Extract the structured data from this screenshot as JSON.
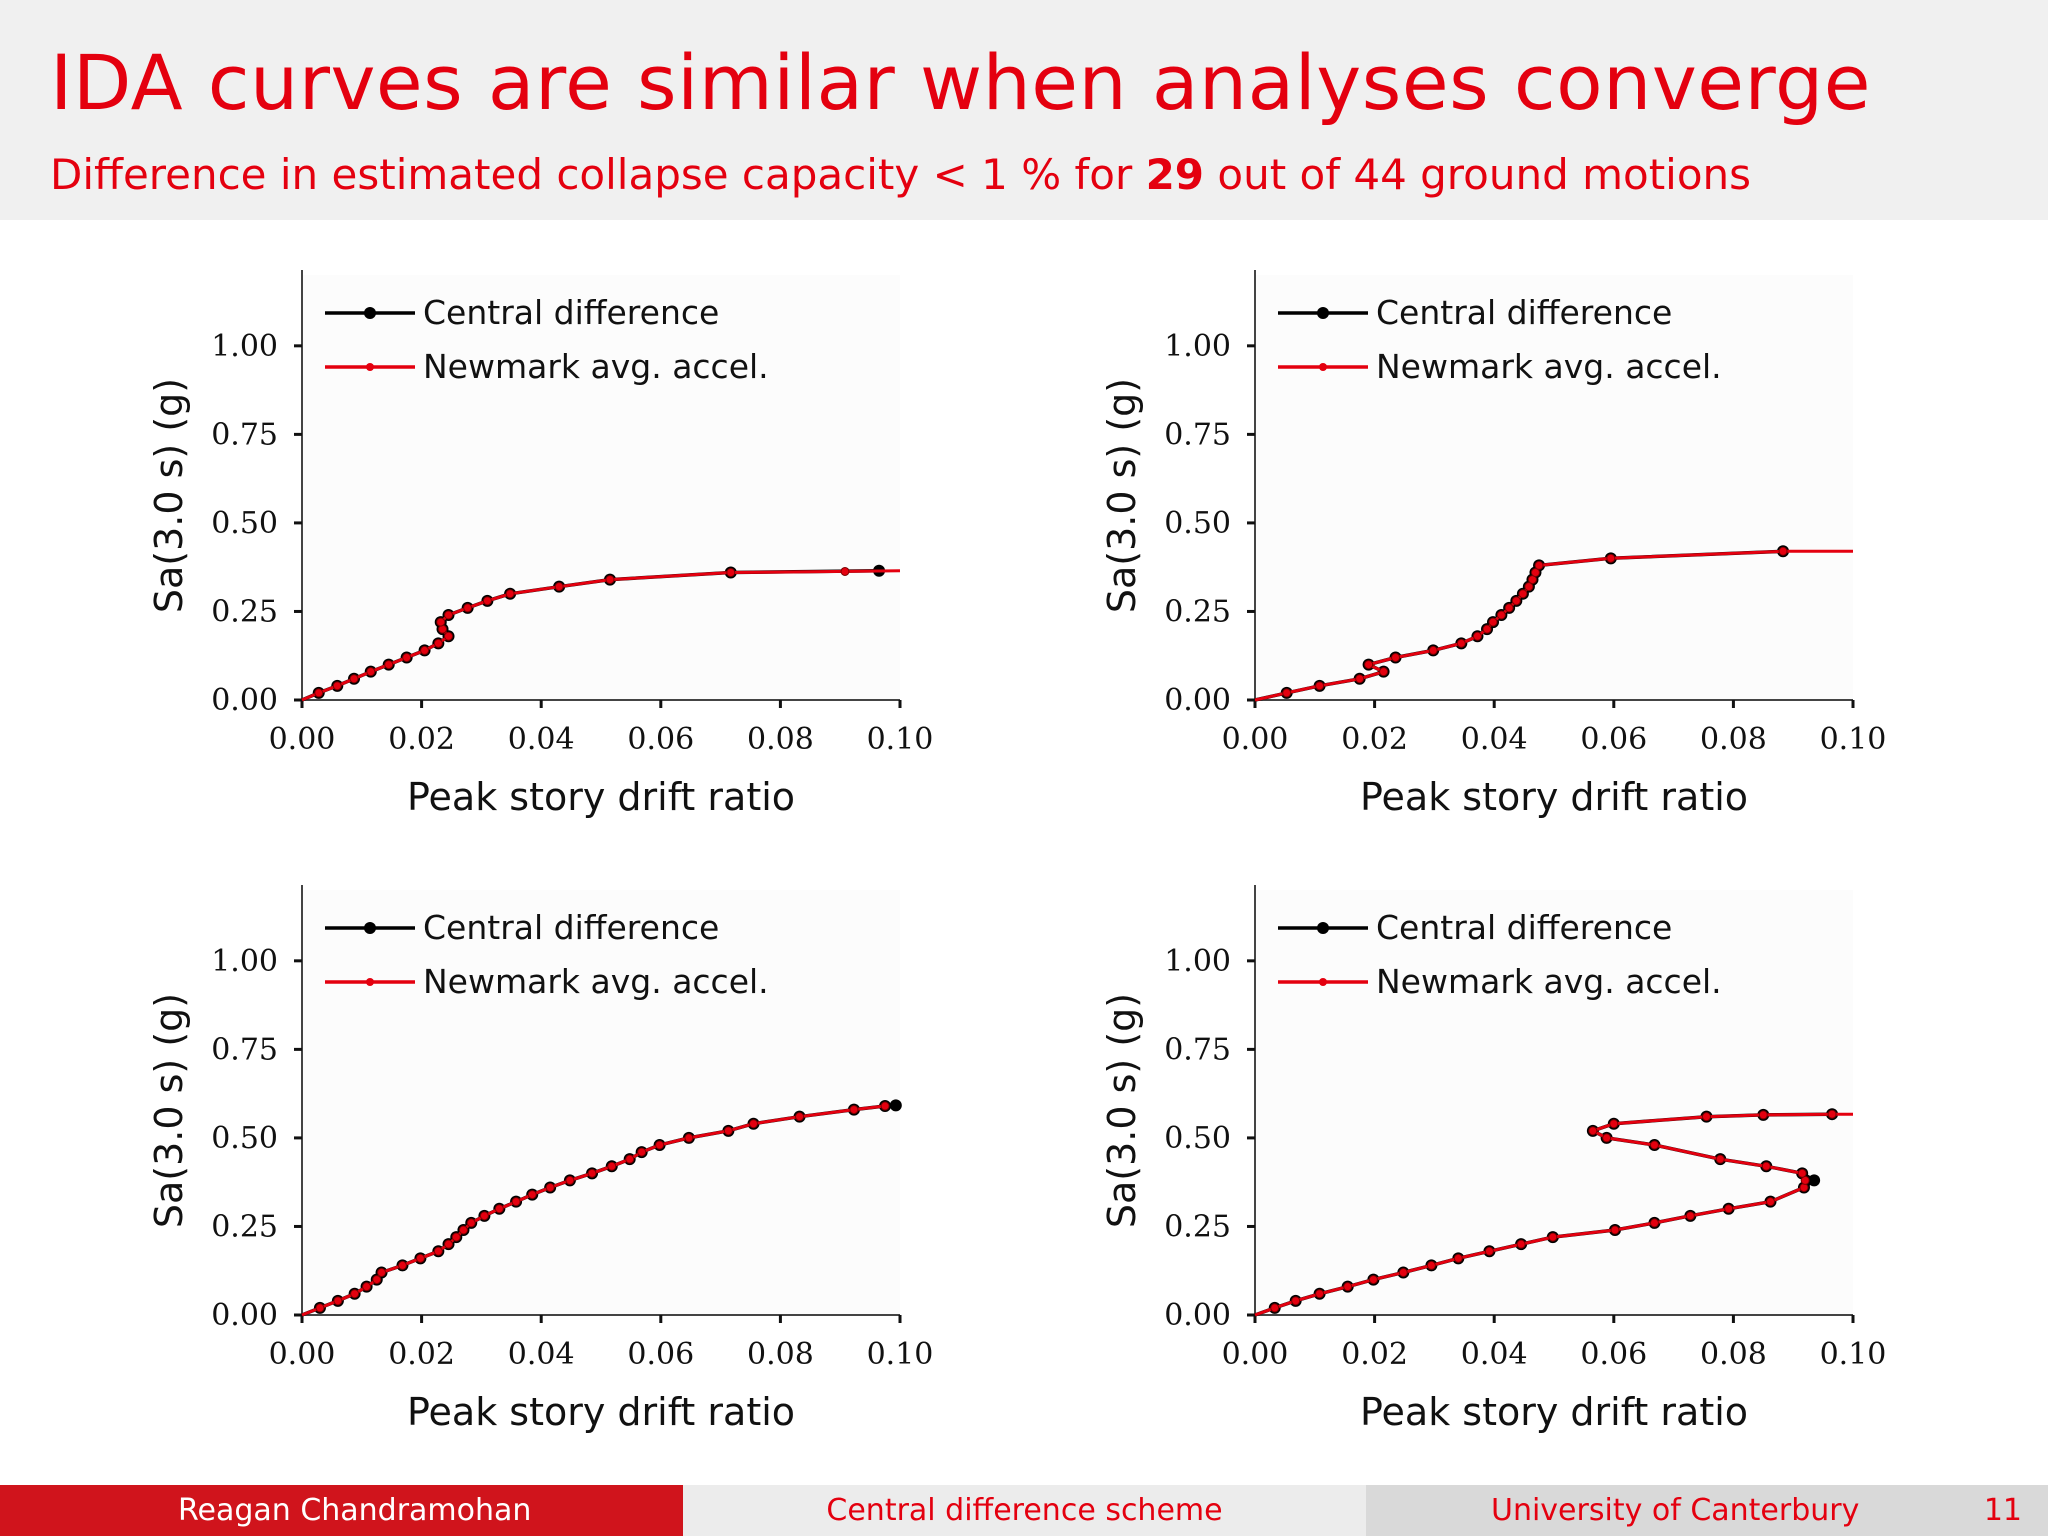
{
  "slide": {
    "title": "IDA curves are similar when analyses converge",
    "subtitle_pre": "Difference in estimated collapse capacity < 1 % for ",
    "subtitle_bold": "29",
    "subtitle_post": " out of 44 ground motions"
  },
  "footer": {
    "author": "Reagan Chandramohan",
    "topic": "Central difference scheme",
    "institution": "University of Canterbury",
    "page": "11"
  },
  "colors": {
    "accent": "#e4000f",
    "central": "#000000",
    "newmark": "#e4000f"
  },
  "chart_data": [
    {
      "type": "line",
      "xlabel": "Peak story drift ratio",
      "ylabel": "Sa(3.0 s) (g)",
      "xlim": [
        0,
        0.1
      ],
      "ylim": [
        0,
        1.2
      ],
      "xticks": [
        "0.00",
        "0.02",
        "0.04",
        "0.06",
        "0.08",
        "0.10"
      ],
      "yticks": [
        "0.00",
        "0.25",
        "0.50",
        "0.75",
        "1.00"
      ],
      "legend_position": "top-left",
      "series": [
        {
          "name": "Central difference",
          "color": "#000000",
          "points": [
            [
              0,
              0
            ],
            [
              0.0028,
              0.02
            ],
            [
              0.0059,
              0.04
            ],
            [
              0.0087,
              0.06
            ],
            [
              0.0115,
              0.08
            ],
            [
              0.0145,
              0.1
            ],
            [
              0.0175,
              0.12
            ],
            [
              0.0205,
              0.14
            ],
            [
              0.0228,
              0.16
            ],
            [
              0.0245,
              0.18
            ],
            [
              0.0235,
              0.2
            ],
            [
              0.0232,
              0.22
            ],
            [
              0.0245,
              0.24
            ],
            [
              0.0277,
              0.26
            ],
            [
              0.031,
              0.28
            ],
            [
              0.0348,
              0.3
            ],
            [
              0.043,
              0.32
            ],
            [
              0.0515,
              0.34
            ],
            [
              0.0717,
              0.36
            ],
            [
              0.0965,
              0.365
            ]
          ]
        },
        {
          "name": "Newmark avg. accel.",
          "color": "#e4000f",
          "points": [
            [
              0,
              0
            ],
            [
              0.0028,
              0.02
            ],
            [
              0.0059,
              0.04
            ],
            [
              0.0087,
              0.06
            ],
            [
              0.0115,
              0.08
            ],
            [
              0.0145,
              0.1
            ],
            [
              0.0175,
              0.12
            ],
            [
              0.0205,
              0.14
            ],
            [
              0.0228,
              0.16
            ],
            [
              0.0245,
              0.18
            ],
            [
              0.0235,
              0.2
            ],
            [
              0.0232,
              0.22
            ],
            [
              0.0245,
              0.24
            ],
            [
              0.0277,
              0.26
            ],
            [
              0.031,
              0.28
            ],
            [
              0.0348,
              0.3
            ],
            [
              0.043,
              0.32
            ],
            [
              0.0515,
              0.34
            ],
            [
              0.0717,
              0.36
            ],
            [
              0.0908,
              0.363
            ],
            [
              0.1,
              0.365
            ]
          ]
        }
      ]
    },
    {
      "type": "line",
      "xlabel": "Peak story drift ratio",
      "ylabel": "Sa(3.0 s) (g)",
      "xlim": [
        0,
        0.1
      ],
      "ylim": [
        0,
        1.2
      ],
      "xticks": [
        "0.00",
        "0.02",
        "0.04",
        "0.06",
        "0.08",
        "0.10"
      ],
      "yticks": [
        "0.00",
        "0.25",
        "0.50",
        "0.75",
        "1.00"
      ],
      "legend_position": "top-left",
      "series": [
        {
          "name": "Central difference",
          "color": "#000000",
          "points": [
            [
              0,
              0
            ],
            [
              0.0053,
              0.02
            ],
            [
              0.0108,
              0.04
            ],
            [
              0.0175,
              0.06
            ],
            [
              0.0215,
              0.08
            ],
            [
              0.019,
              0.1
            ],
            [
              0.0235,
              0.12
            ],
            [
              0.0298,
              0.14
            ],
            [
              0.0345,
              0.16
            ],
            [
              0.0372,
              0.18
            ],
            [
              0.0388,
              0.2
            ],
            [
              0.0398,
              0.22
            ],
            [
              0.0412,
              0.24
            ],
            [
              0.0425,
              0.26
            ],
            [
              0.0437,
              0.28
            ],
            [
              0.0448,
              0.3
            ],
            [
              0.0458,
              0.32
            ],
            [
              0.0464,
              0.34
            ],
            [
              0.0469,
              0.36
            ],
            [
              0.0475,
              0.38
            ],
            [
              0.0595,
              0.4
            ],
            [
              0.0883,
              0.42
            ]
          ]
        },
        {
          "name": "Newmark avg. accel.",
          "color": "#e4000f",
          "points": [
            [
              0,
              0
            ],
            [
              0.0053,
              0.02
            ],
            [
              0.0108,
              0.04
            ],
            [
              0.0175,
              0.06
            ],
            [
              0.0215,
              0.08
            ],
            [
              0.019,
              0.1
            ],
            [
              0.0235,
              0.12
            ],
            [
              0.0298,
              0.14
            ],
            [
              0.0345,
              0.16
            ],
            [
              0.0372,
              0.18
            ],
            [
              0.0388,
              0.2
            ],
            [
              0.0398,
              0.22
            ],
            [
              0.0412,
              0.24
            ],
            [
              0.0425,
              0.26
            ],
            [
              0.0437,
              0.28
            ],
            [
              0.0448,
              0.3
            ],
            [
              0.0458,
              0.32
            ],
            [
              0.0464,
              0.34
            ],
            [
              0.0469,
              0.36
            ],
            [
              0.0475,
              0.38
            ],
            [
              0.0595,
              0.4
            ],
            [
              0.0883,
              0.42
            ],
            [
              0.1,
              0.42
            ]
          ]
        }
      ]
    },
    {
      "type": "line",
      "xlabel": "Peak story drift ratio",
      "ylabel": "Sa(3.0 s) (g)",
      "xlim": [
        0,
        0.1
      ],
      "ylim": [
        0,
        1.2
      ],
      "xticks": [
        "0.00",
        "0.02",
        "0.04",
        "0.06",
        "0.08",
        "0.10"
      ],
      "yticks": [
        "0.00",
        "0.25",
        "0.50",
        "0.75",
        "1.00"
      ],
      "legend_position": "top-left",
      "series": [
        {
          "name": "Central difference",
          "color": "#000000",
          "points": [
            [
              0,
              0
            ],
            [
              0.003,
              0.02
            ],
            [
              0.006,
              0.04
            ],
            [
              0.0088,
              0.06
            ],
            [
              0.0108,
              0.08
            ],
            [
              0.0125,
              0.1
            ],
            [
              0.0133,
              0.12
            ],
            [
              0.0168,
              0.14
            ],
            [
              0.0198,
              0.16
            ],
            [
              0.0228,
              0.18
            ],
            [
              0.0245,
              0.2
            ],
            [
              0.0258,
              0.22
            ],
            [
              0.027,
              0.24
            ],
            [
              0.0283,
              0.26
            ],
            [
              0.0305,
              0.28
            ],
            [
              0.033,
              0.3
            ],
            [
              0.0358,
              0.32
            ],
            [
              0.0385,
              0.34
            ],
            [
              0.0415,
              0.36
            ],
            [
              0.0448,
              0.38
            ],
            [
              0.0485,
              0.4
            ],
            [
              0.0518,
              0.42
            ],
            [
              0.0548,
              0.44
            ],
            [
              0.0568,
              0.46
            ],
            [
              0.0598,
              0.48
            ],
            [
              0.0647,
              0.5
            ],
            [
              0.0713,
              0.52
            ],
            [
              0.0755,
              0.54
            ],
            [
              0.0832,
              0.56
            ],
            [
              0.0923,
              0.58
            ],
            [
              0.0975,
              0.59
            ],
            [
              0.0993,
              0.592
            ]
          ]
        },
        {
          "name": "Newmark avg. accel.",
          "color": "#e4000f",
          "points": [
            [
              0,
              0
            ],
            [
              0.003,
              0.02
            ],
            [
              0.006,
              0.04
            ],
            [
              0.0088,
              0.06
            ],
            [
              0.0108,
              0.08
            ],
            [
              0.0125,
              0.1
            ],
            [
              0.0133,
              0.12
            ],
            [
              0.0168,
              0.14
            ],
            [
              0.0198,
              0.16
            ],
            [
              0.0228,
              0.18
            ],
            [
              0.0245,
              0.2
            ],
            [
              0.0258,
              0.22
            ],
            [
              0.027,
              0.24
            ],
            [
              0.0283,
              0.26
            ],
            [
              0.0305,
              0.28
            ],
            [
              0.033,
              0.3
            ],
            [
              0.0358,
              0.32
            ],
            [
              0.0385,
              0.34
            ],
            [
              0.0415,
              0.36
            ],
            [
              0.0448,
              0.38
            ],
            [
              0.0485,
              0.4
            ],
            [
              0.0518,
              0.42
            ],
            [
              0.0548,
              0.44
            ],
            [
              0.0568,
              0.46
            ],
            [
              0.0598,
              0.48
            ],
            [
              0.0647,
              0.5
            ],
            [
              0.0713,
              0.52
            ],
            [
              0.0755,
              0.54
            ],
            [
              0.0832,
              0.56
            ],
            [
              0.0923,
              0.58
            ],
            [
              0.0975,
              0.59
            ]
          ]
        }
      ]
    },
    {
      "type": "line",
      "xlabel": "Peak story drift ratio",
      "ylabel": "Sa(3.0 s) (g)",
      "xlim": [
        0,
        0.1
      ],
      "ylim": [
        0,
        1.2
      ],
      "xticks": [
        "0.00",
        "0.02",
        "0.04",
        "0.06",
        "0.08",
        "0.10"
      ],
      "yticks": [
        "0.00",
        "0.25",
        "0.50",
        "0.75",
        "1.00"
      ],
      "legend_position": "top-left",
      "series": [
        {
          "name": "Central difference",
          "color": "#000000",
          "points": [
            [
              0,
              0
            ],
            [
              0.0033,
              0.02
            ],
            [
              0.0068,
              0.04
            ],
            [
              0.0108,
              0.06
            ],
            [
              0.0155,
              0.08
            ],
            [
              0.0198,
              0.1
            ],
            [
              0.0248,
              0.12
            ],
            [
              0.0295,
              0.14
            ],
            [
              0.034,
              0.16
            ],
            [
              0.0392,
              0.18
            ],
            [
              0.0445,
              0.2
            ],
            [
              0.0498,
              0.22
            ],
            [
              0.0602,
              0.24
            ],
            [
              0.0668,
              0.26
            ],
            [
              0.0728,
              0.28
            ],
            [
              0.0792,
              0.3
            ],
            [
              0.0862,
              0.32
            ],
            [
              0.0918,
              0.36
            ],
            [
              0.0935,
              0.38
            ],
            [
              0.0915,
              0.4
            ],
            [
              0.0855,
              0.42
            ],
            [
              0.0778,
              0.44
            ],
            [
              0.0668,
              0.48
            ],
            [
              0.0588,
              0.5
            ],
            [
              0.0565,
              0.52
            ],
            [
              0.06,
              0.54
            ],
            [
              0.0755,
              0.56
            ],
            [
              0.085,
              0.565
            ],
            [
              0.0965,
              0.567
            ]
          ]
        },
        {
          "name": "Newmark avg. accel.",
          "color": "#e4000f",
          "points": [
            [
              0,
              0
            ],
            [
              0.0033,
              0.02
            ],
            [
              0.0068,
              0.04
            ],
            [
              0.0108,
              0.06
            ],
            [
              0.0155,
              0.08
            ],
            [
              0.0198,
              0.1
            ],
            [
              0.0248,
              0.12
            ],
            [
              0.0295,
              0.14
            ],
            [
              0.034,
              0.16
            ],
            [
              0.0392,
              0.18
            ],
            [
              0.0445,
              0.2
            ],
            [
              0.0498,
              0.22
            ],
            [
              0.0602,
              0.24
            ],
            [
              0.0668,
              0.26
            ],
            [
              0.0728,
              0.28
            ],
            [
              0.0792,
              0.3
            ],
            [
              0.0862,
              0.32
            ],
            [
              0.0918,
              0.36
            ],
            [
              0.092,
              0.38
            ],
            [
              0.0915,
              0.4
            ],
            [
              0.0855,
              0.42
            ],
            [
              0.0778,
              0.44
            ],
            [
              0.0668,
              0.48
            ],
            [
              0.0588,
              0.5
            ],
            [
              0.0565,
              0.52
            ],
            [
              0.06,
              0.54
            ],
            [
              0.0755,
              0.56
            ],
            [
              0.085,
              0.565
            ],
            [
              0.0965,
              0.567
            ],
            [
              0.1,
              0.567
            ]
          ]
        }
      ]
    }
  ]
}
